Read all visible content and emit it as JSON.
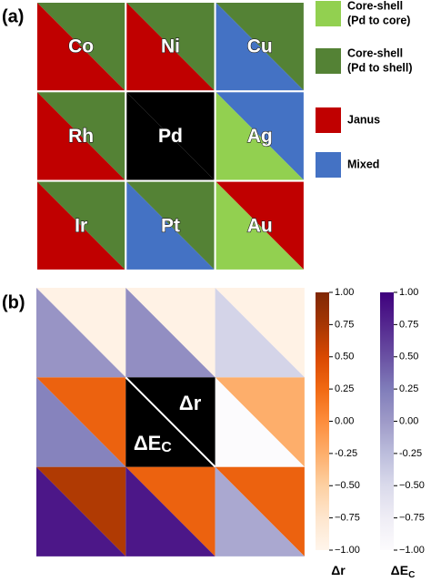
{
  "chart_data": [
    {
      "type": "triangle-grid",
      "panel_label": "(a)",
      "rows": [
        [
          {
            "label": "Co",
            "upper_color": "#548235",
            "lower_color": "#c00000"
          },
          {
            "label": "Ni",
            "upper_color": "#548235",
            "lower_color": "#c00000"
          },
          {
            "label": "Cu",
            "upper_color": "#548235",
            "lower_color": "#4472c4"
          }
        ],
        [
          {
            "label": "Rh",
            "upper_color": "#548235",
            "lower_color": "#c00000"
          },
          {
            "label": "Pd",
            "upper_color": "#000000",
            "lower_color": "#000000"
          },
          {
            "label": "Ag",
            "upper_color": "#4472c4",
            "lower_color": "#92d050"
          }
        ],
        [
          {
            "label": "Ir",
            "upper_color": "#548235",
            "lower_color": "#c00000"
          },
          {
            "label": "Pt",
            "upper_color": "#548235",
            "lower_color": "#4472c4"
          },
          {
            "label": "Au",
            "upper_color": "#c00000",
            "lower_color": "#92d050"
          }
        ]
      ],
      "legend": [
        {
          "lines": [
            "Core-shell",
            "(Pd to core)"
          ],
          "color": "#92d050"
        },
        {
          "lines": [
            "Core-shell",
            "(Pd to shell)"
          ],
          "color": "#548235"
        },
        {
          "lines": [
            "Janus"
          ],
          "color": "#c00000"
        },
        {
          "lines": [
            "Mixed"
          ],
          "color": "#4472c4"
        }
      ]
    },
    {
      "type": "triangle-heatmap",
      "panel_label": "(b)",
      "center_color": "#000000",
      "clim": [
        -1,
        1
      ],
      "cticks": [
        {
          "value": 1,
          "label": "1.00"
        },
        0.75,
        {
          "value": 0.5,
          "label": "0.50"
        },
        0.25,
        {
          "value": 0,
          "label": "0.00"
        },
        -0.25,
        {
          "value": -0.5,
          "label": "−0.50"
        },
        {
          "value": -0.75,
          "label": "−0.75"
        },
        {
          "value": -1,
          "label": "−1.00"
        }
      ],
      "series": [
        {
          "name": "Δr",
          "position": "upper",
          "colormap": [
            "#fff5eb",
            "#fee6ce",
            "#fdd0a2",
            "#fdae6b",
            "#fd8d3c",
            "#f16913",
            "#d94801",
            "#a63603",
            "#7f2704"
          ],
          "values": [
            [
              -0.95,
              -0.95,
              -0.95
            ],
            [
              0.3,
              null,
              -0.25
            ],
            [
              0.7,
              0.3,
              0.3
            ]
          ]
        },
        {
          "name": "ΔE",
          "name_sub": "C",
          "position": "lower",
          "colormap": [
            "#fcfbfd",
            "#efedf5",
            "#dadaeb",
            "#bcbddc",
            "#9e9ac8",
            "#807dba",
            "#6a51a3",
            "#54278f",
            "#3f007d"
          ],
          "values": [
            [
              0.05,
              0.1,
              -0.45
            ],
            [
              0.2,
              null,
              -1.0
            ],
            [
              0.85,
              0.85,
              -0.1
            ]
          ]
        }
      ]
    }
  ]
}
